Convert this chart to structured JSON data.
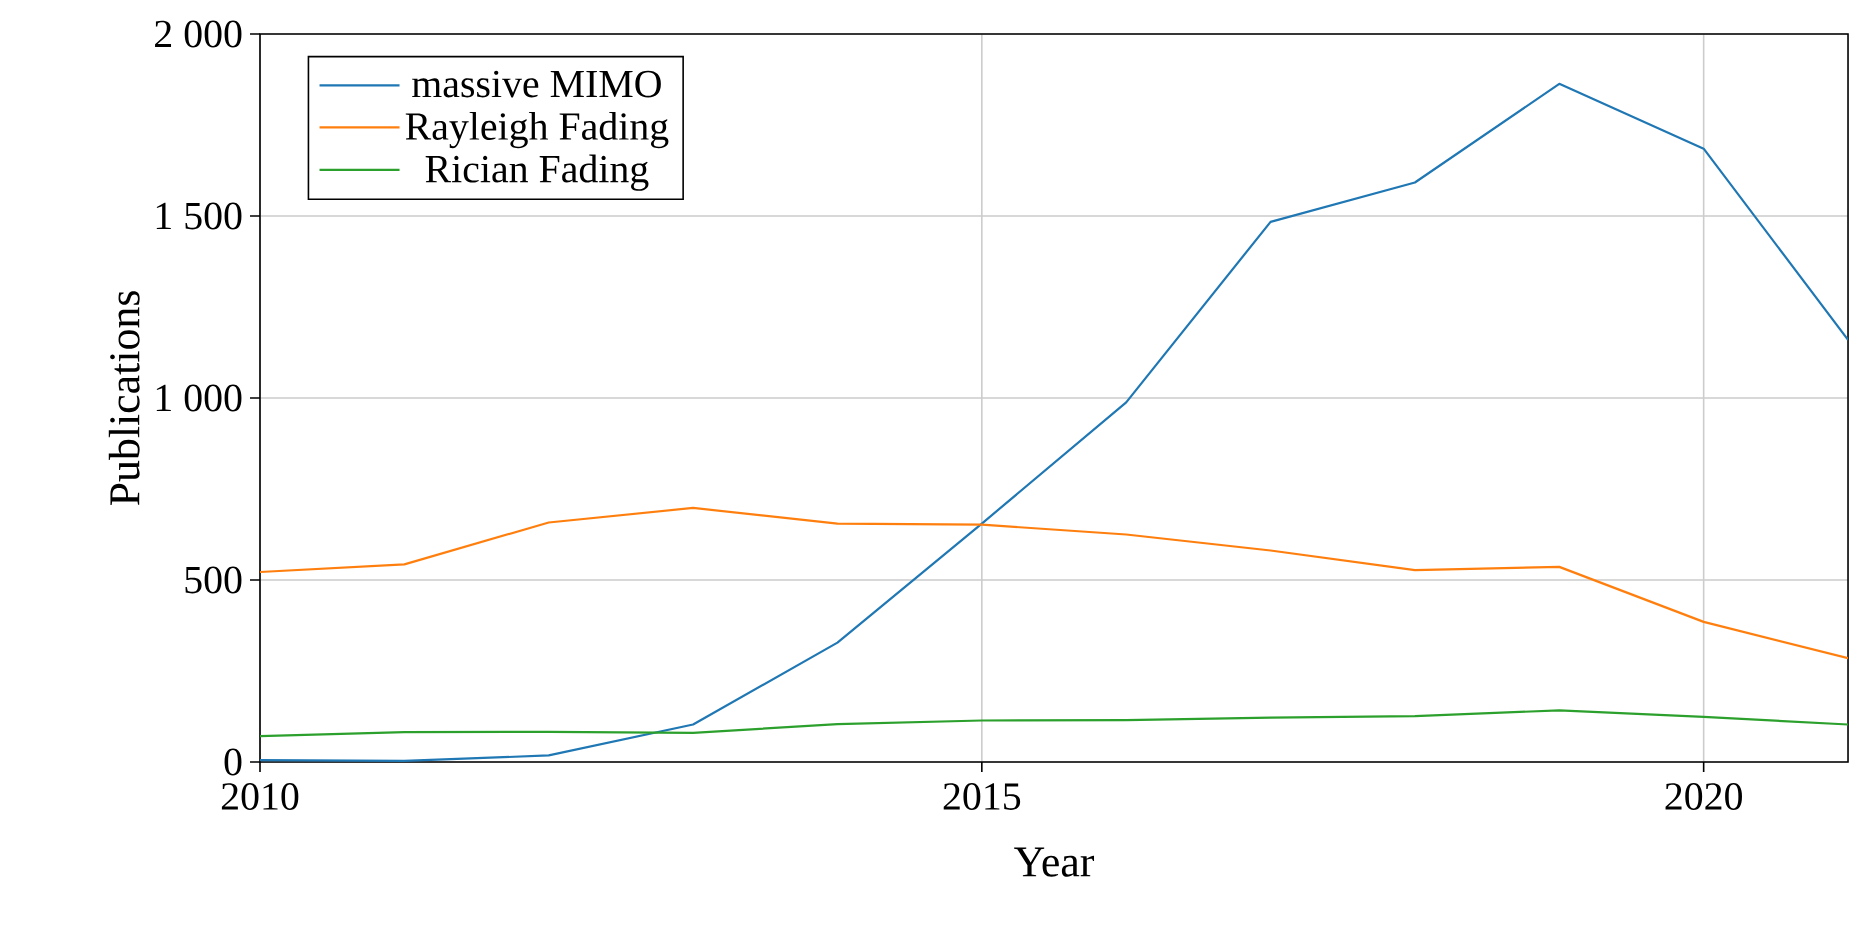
{
  "chart_data": {
    "type": "line",
    "xlabel": "Year",
    "ylabel": "Publications",
    "x": [
      2010,
      2011,
      2012,
      2013,
      2014,
      2015,
      2016,
      2017,
      2018,
      2019,
      2020,
      2021
    ],
    "series": [
      {
        "name": "massive MIMO",
        "color": "#1f77b4",
        "values": [
          5,
          3,
          18,
          103,
          328,
          655,
          988,
          1484,
          1592,
          1863,
          1685,
          1160
        ]
      },
      {
        "name": "Rayleigh Fading",
        "color": "#ff7f0e",
        "values": [
          522,
          543,
          658,
          698,
          655,
          652,
          625,
          581,
          527,
          536,
          385,
          285
        ]
      },
      {
        "name": "Rician Fading",
        "color": "#2ca02c",
        "values": [
          71,
          82,
          83,
          80,
          104,
          114,
          115,
          122,
          126,
          142,
          124,
          103
        ]
      }
    ],
    "xlim": [
      2010,
      2021
    ],
    "xticks": [
      2010,
      2015,
      2020
    ],
    "ylim": [
      0,
      2000
    ],
    "yticks": [
      0,
      500,
      {
        "value": 1000,
        "label": "1 000"
      },
      {
        "value": 1500,
        "label": "1 500"
      },
      {
        "value": 2000,
        "label": "2 000"
      }
    ],
    "grid": true,
    "legend": "top left",
    "marker": "none",
    "line_style": "solid"
  }
}
